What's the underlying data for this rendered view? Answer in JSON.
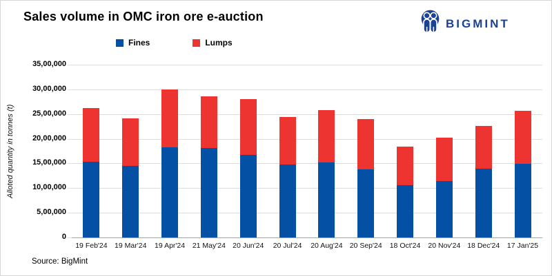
{
  "header": {
    "logo_text": "BIGMINT",
    "logo_color": "#1a4297"
  },
  "footer": {
    "source": "Source: BigMint"
  },
  "chart_data": {
    "type": "bar",
    "stacked": true,
    "title": "Sales volume in OMC iron ore e-auction",
    "ylabel": "Alloted quantity in tonnes (t)",
    "xlabel": "",
    "ylim": [
      0,
      3500000
    ],
    "ytick_step": 500000,
    "ytick_labels_top_to_bottom": [
      "35,00,000",
      "30,00,000",
      "25,00,000",
      "20,00,000",
      "15,00,000",
      "10,00,000",
      "5,00,000",
      "0"
    ],
    "grid": true,
    "legend_position": "top",
    "categories": [
      "19 Feb'24",
      "19 Mar'24",
      "19 Apr'24",
      "21 May'24",
      "20 Jun'24",
      "20 Jul'24",
      "20 Aug'24",
      "20 Sep'24",
      "18 Oct'24",
      "20 Nov'24",
      "18 Dec'24",
      "17 Jan'25"
    ],
    "series": [
      {
        "name": "Fines",
        "color": "#0450a4",
        "values": [
          1540000,
          1450000,
          1830000,
          1810000,
          1680000,
          1480000,
          1520000,
          1380000,
          1060000,
          1140000,
          1390000,
          1490000
        ]
      },
      {
        "name": "Lumps",
        "color": "#ee3431",
        "values": [
          1080000,
          960000,
          1170000,
          1050000,
          1120000,
          960000,
          1060000,
          1020000,
          780000,
          880000,
          870000,
          1070000
        ]
      }
    ],
    "totals": [
      2620000,
      2410000,
      3000000,
      2860000,
      2800000,
      2440000,
      2580000,
      2400000,
      1840000,
      2020000,
      2260000,
      2560000
    ]
  }
}
